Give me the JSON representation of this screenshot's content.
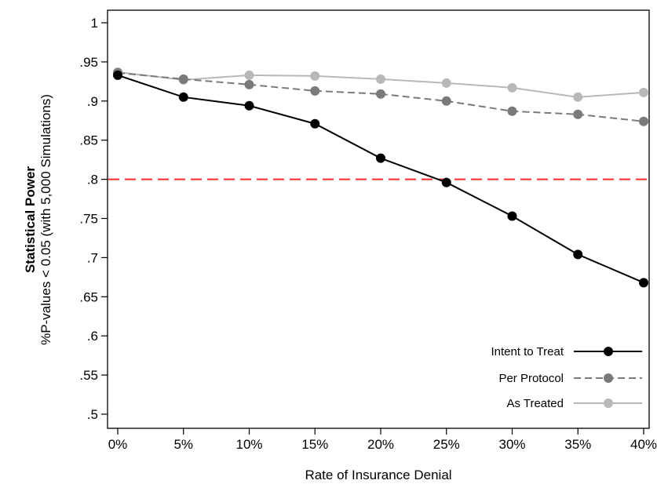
{
  "chart_data": {
    "type": "line",
    "ylabel_title": "Statistical Power",
    "ylabel": "%P-values < 0.05 (with 5,000 Simulations)",
    "xlabel": "Rate of Insurance Denial",
    "categories": [
      "0%",
      "5%",
      "10%",
      "15%",
      "20%",
      "25%",
      "30%",
      "35%",
      "40%"
    ],
    "yticks": [
      "1",
      ".95",
      ".9",
      ".85",
      ".8",
      ".75",
      ".7",
      ".65",
      ".6",
      ".55",
      ".5"
    ],
    "ylim": [
      0.49,
      1.015
    ],
    "reference_line": {
      "y": 0.8,
      "color": "#ff2a2a",
      "style": "dashed"
    },
    "legend_position": "bottom-right",
    "grid": false,
    "series": [
      {
        "name": "Intent to Treat",
        "color": "#000000",
        "style": "solid",
        "values": [
          0.933,
          0.905,
          0.894,
          0.871,
          0.827,
          0.796,
          0.753,
          0.704,
          0.668
        ]
      },
      {
        "name": "Per Protocol",
        "color": "#7a7a7a",
        "style": "dashed",
        "values": [
          0.936,
          0.928,
          0.921,
          0.913,
          0.909,
          0.9,
          0.887,
          0.883,
          0.874
        ]
      },
      {
        "name": "As Treated",
        "color": "#b8b8b8",
        "style": "solid",
        "values": [
          0.937,
          0.927,
          0.933,
          0.932,
          0.928,
          0.923,
          0.917,
          0.905,
          0.911
        ]
      }
    ]
  }
}
